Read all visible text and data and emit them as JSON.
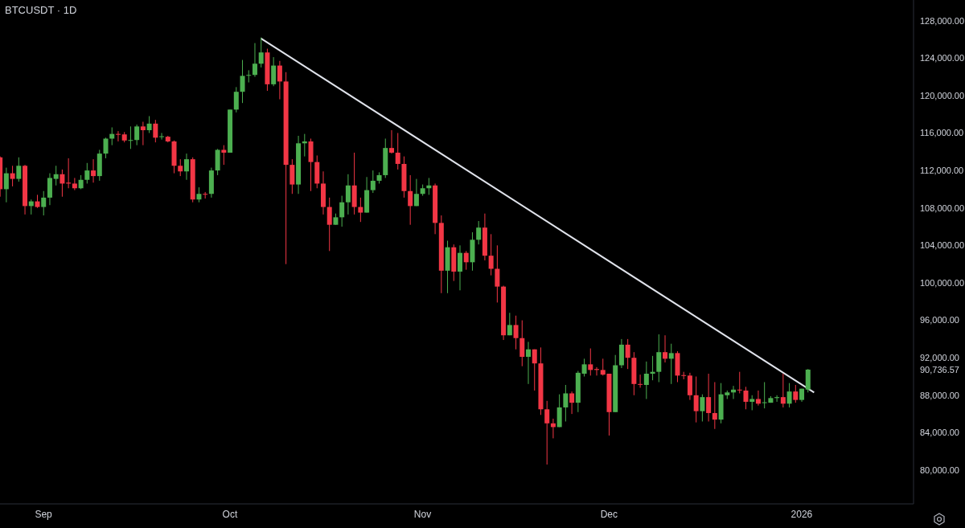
{
  "chart_data": {
    "type": "candlestick",
    "title": "BTCUSDT · 1D",
    "x": [
      "2025-08-25",
      "2025-08-26",
      "2025-08-27",
      "2025-08-28",
      "2025-08-29",
      "2025-08-30",
      "2025-08-31",
      "2025-09-01",
      "2025-09-02",
      "2025-09-03",
      "2025-09-04",
      "2025-09-05",
      "2025-09-06",
      "2025-09-07",
      "2025-09-08",
      "2025-09-09",
      "2025-09-10",
      "2025-09-11",
      "2025-09-12",
      "2025-09-13",
      "2025-09-14",
      "2025-09-15",
      "2025-09-16",
      "2025-09-17",
      "2025-09-18",
      "2025-09-19",
      "2025-09-20",
      "2025-09-21",
      "2025-09-22",
      "2025-09-23",
      "2025-09-24",
      "2025-09-25",
      "2025-09-26",
      "2025-09-27",
      "2025-09-28",
      "2025-09-29",
      "2025-09-30",
      "2025-10-01",
      "2025-10-02",
      "2025-10-03",
      "2025-10-04",
      "2025-10-05",
      "2025-10-06",
      "2025-10-07",
      "2025-10-08",
      "2025-10-09",
      "2025-10-10",
      "2025-10-11",
      "2025-10-12",
      "2025-10-13",
      "2025-10-14",
      "2025-10-15",
      "2025-10-16",
      "2025-10-17",
      "2025-10-18",
      "2025-10-19",
      "2025-10-20",
      "2025-10-21",
      "2025-10-22",
      "2025-10-23",
      "2025-10-24",
      "2025-10-25",
      "2025-10-26",
      "2025-10-27",
      "2025-10-28",
      "2025-10-29",
      "2025-10-30",
      "2025-10-31",
      "2025-11-01",
      "2025-11-02",
      "2025-11-03",
      "2025-11-04",
      "2025-11-05",
      "2025-11-06",
      "2025-11-07",
      "2025-11-08",
      "2025-11-09",
      "2025-11-10",
      "2025-11-11",
      "2025-11-12",
      "2025-11-13",
      "2025-11-14",
      "2025-11-15",
      "2025-11-16",
      "2025-11-17",
      "2025-11-18",
      "2025-11-19",
      "2025-11-20",
      "2025-11-21",
      "2025-11-22",
      "2025-11-23",
      "2025-11-24",
      "2025-11-25",
      "2025-11-26",
      "2025-11-27",
      "2025-11-28",
      "2025-11-29",
      "2025-11-30",
      "2025-12-01",
      "2025-12-02",
      "2025-12-03",
      "2025-12-04",
      "2025-12-05",
      "2025-12-06",
      "2025-12-07",
      "2025-12-08",
      "2025-12-09",
      "2025-12-10",
      "2025-12-11",
      "2025-12-12",
      "2025-12-13",
      "2025-12-14",
      "2025-12-15",
      "2025-12-16",
      "2025-12-17",
      "2025-12-18",
      "2025-12-19",
      "2025-12-20",
      "2025-12-21",
      "2025-12-22",
      "2025-12-23",
      "2025-12-24",
      "2025-12-25",
      "2025-12-26",
      "2025-12-27",
      "2025-12-28",
      "2025-12-29",
      "2025-12-30",
      "2025-12-31",
      "2026-01-01",
      "2026-01-02"
    ],
    "ohlc": [
      [
        113400,
        113500,
        109200,
        110000
      ],
      [
        110000,
        112300,
        108600,
        111700
      ],
      [
        111700,
        112500,
        110300,
        111100
      ],
      [
        111100,
        113400,
        110800,
        112500
      ],
      [
        112500,
        112600,
        107300,
        108200
      ],
      [
        108200,
        108900,
        107300,
        108700
      ],
      [
        108700,
        109400,
        108000,
        108100
      ],
      [
        108100,
        109800,
        107200,
        109100
      ],
      [
        109100,
        111700,
        108300,
        111200
      ],
      [
        111100,
        112500,
        110400,
        111600
      ],
      [
        111600,
        112100,
        109200,
        110600
      ],
      [
        110700,
        113300,
        110100,
        110600
      ],
      [
        110600,
        111200,
        109900,
        110100
      ],
      [
        110100,
        111500,
        110000,
        111000
      ],
      [
        111000,
        112800,
        110600,
        112000
      ],
      [
        112000,
        113200,
        110700,
        111400
      ],
      [
        111400,
        114200,
        110900,
        113800
      ],
      [
        113800,
        115500,
        113300,
        115400
      ],
      [
        115400,
        116600,
        114700,
        115900
      ],
      [
        115900,
        116200,
        115100,
        115850
      ],
      [
        115850,
        116100,
        115000,
        115200
      ],
      [
        115200,
        116700,
        114300,
        115250
      ],
      [
        115250,
        116900,
        114700,
        116700
      ],
      [
        116700,
        117200,
        114700,
        116300
      ],
      [
        116300,
        117800,
        116000,
        117000
      ],
      [
        117000,
        117400,
        115000,
        115500
      ],
      [
        115600,
        116000,
        115300,
        115650
      ],
      [
        115600,
        115700,
        115000,
        115100
      ],
      [
        115100,
        115200,
        111700,
        112500
      ],
      [
        112500,
        113200,
        111400,
        111900
      ],
      [
        111900,
        113800,
        111000,
        113200
      ],
      [
        113200,
        113400,
        108600,
        108900
      ],
      [
        108900,
        110200,
        108600,
        109500
      ],
      [
        109500,
        109700,
        109000,
        109450
      ],
      [
        109500,
        112300,
        109100,
        112000
      ],
      [
        112000,
        114300,
        111500,
        114200
      ],
      [
        114200,
        114700,
        112600,
        113900
      ],
      [
        113900,
        118500,
        113900,
        118500
      ],
      [
        118500,
        120900,
        118200,
        120400
      ],
      [
        120400,
        123800,
        119200,
        122100
      ],
      [
        122150,
        122700,
        121400,
        122200
      ],
      [
        122200,
        125600,
        122000,
        123400
      ],
      [
        123400,
        126200,
        123000,
        124600
      ],
      [
        124600,
        125000,
        120500,
        121200
      ],
      [
        121200,
        124100,
        121000,
        123200
      ],
      [
        123200,
        123700,
        119600,
        121500
      ],
      [
        121500,
        122500,
        102000,
        112600
      ],
      [
        112600,
        113200,
        109500,
        110500
      ],
      [
        110500,
        115700,
        109500,
        114900
      ],
      [
        114900,
        115900,
        113500,
        115100
      ],
      [
        115100,
        115400,
        109800,
        112900
      ],
      [
        112900,
        113600,
        110100,
        110600
      ],
      [
        110600,
        111900,
        107300,
        108100
      ],
      [
        108100,
        109100,
        103400,
        106200
      ],
      [
        106200,
        107400,
        106200,
        107000
      ],
      [
        107000,
        109300,
        106000,
        108600
      ],
      [
        108600,
        111600,
        107300,
        110400
      ],
      [
        110400,
        113900,
        107300,
        108100
      ],
      [
        108100,
        109100,
        106500,
        107500
      ],
      [
        107500,
        111300,
        107500,
        109900
      ],
      [
        109900,
        112000,
        109600,
        110900
      ],
      [
        110900,
        111800,
        110600,
        111500
      ],
      [
        111500,
        115400,
        111200,
        114400
      ],
      [
        114400,
        116300,
        113800,
        113900
      ],
      [
        113900,
        116000,
        112100,
        112700
      ],
      [
        112700,
        113500,
        109100,
        109800
      ],
      [
        109800,
        111500,
        106200,
        108200
      ],
      [
        108200,
        111100,
        108200,
        109500
      ],
      [
        109500,
        110500,
        109300,
        110100
      ],
      [
        110100,
        111200,
        109400,
        110400
      ],
      [
        110400,
        110600,
        105200,
        106400
      ],
      [
        106400,
        107200,
        98900,
        101300
      ],
      [
        101300,
        104500,
        98900,
        103800
      ],
      [
        103800,
        104100,
        100200,
        101200
      ],
      [
        101200,
        104000,
        99200,
        103200
      ],
      [
        103200,
        103400,
        101400,
        102200
      ],
      [
        102200,
        105400,
        101300,
        104600
      ],
      [
        104600,
        106600,
        104100,
        105900
      ],
      [
        105900,
        107400,
        102400,
        102900
      ],
      [
        102900,
        105200,
        100800,
        101500
      ],
      [
        101500,
        104000,
        97900,
        99600
      ],
      [
        99600,
        99700,
        93900,
        94400
      ],
      [
        94400,
        96800,
        94400,
        95500
      ],
      [
        95500,
        96500,
        92900,
        94100
      ],
      [
        94100,
        96000,
        91100,
        92100
      ],
      [
        92100,
        93700,
        89200,
        92900
      ],
      [
        92900,
        92900,
        88500,
        91400
      ],
      [
        91400,
        93100,
        85900,
        86500
      ],
      [
        86500,
        87400,
        80600,
        85000
      ],
      [
        85000,
        85500,
        83400,
        84600
      ],
      [
        84600,
        88100,
        84600,
        86700
      ],
      [
        86700,
        89100,
        85200,
        88200
      ],
      [
        88200,
        88400,
        86000,
        87200
      ],
      [
        87200,
        90600,
        86200,
        90400
      ],
      [
        90300,
        91900,
        90000,
        91300
      ],
      [
        91300,
        93000,
        90100,
        90700
      ],
      [
        90800,
        91000,
        90100,
        90700
      ],
      [
        90700,
        91900,
        90100,
        90200
      ],
      [
        90300,
        90300,
        83700,
        86200
      ],
      [
        86200,
        92300,
        86200,
        91200
      ],
      [
        91200,
        94000,
        90900,
        93400
      ],
      [
        93400,
        94000,
        90800,
        92000
      ],
      [
        92000,
        92600,
        88000,
        89200
      ],
      [
        89200,
        90200,
        88800,
        89150
      ],
      [
        89100,
        91600,
        87600,
        90300
      ],
      [
        90300,
        92200,
        89600,
        90500
      ],
      [
        90500,
        94500,
        89400,
        92600
      ],
      [
        92600,
        94400,
        91500,
        91900
      ],
      [
        91900,
        93500,
        89200,
        92500
      ],
      [
        92500,
        92700,
        89400,
        90100
      ],
      [
        90150,
        90500,
        89700,
        90100
      ],
      [
        90100,
        90400,
        87500,
        88000
      ],
      [
        88000,
        90000,
        85100,
        86300
      ],
      [
        86300,
        88100,
        85200,
        87800
      ],
      [
        87800,
        90300,
        85200,
        86100
      ],
      [
        86100,
        89400,
        84400,
        85400
      ],
      [
        85400,
        89300,
        85000,
        88100
      ],
      [
        88000,
        88500,
        87600,
        88300
      ],
      [
        88300,
        89000,
        87600,
        88600
      ],
      [
        88600,
        90500,
        88200,
        88550
      ],
      [
        88500,
        88900,
        86500,
        87300
      ],
      [
        87300,
        88000,
        86400,
        87600
      ],
      [
        87600,
        88500,
        86900,
        87100
      ],
      [
        87200,
        89400,
        86600,
        87250
      ],
      [
        87200,
        87900,
        87200,
        87700
      ],
      [
        87700,
        88000,
        87300,
        87800
      ],
      [
        87800,
        90300,
        86700,
        87100
      ],
      [
        87100,
        89300,
        86700,
        88400
      ],
      [
        88400,
        89100,
        87200,
        87500
      ],
      [
        87500,
        88700,
        87300,
        88700
      ],
      [
        88600,
        90800,
        88300,
        90736.57
      ]
    ],
    "colors": [
      "#f23645",
      "#4caf50",
      "#f23645",
      "#4caf50",
      "#f23645",
      "#4caf50",
      "#f23645",
      "#4caf50",
      "#4caf50",
      "#4caf50",
      "#f23645",
      "#f23645",
      "#f23645",
      "#4caf50",
      "#4caf50",
      "#f23645",
      "#4caf50",
      "#4caf50",
      "#4caf50",
      "#f23645",
      "#f23645",
      "#4caf50",
      "#4caf50",
      "#f23645",
      "#4caf50",
      "#f23645",
      "#4caf50",
      "#f23645",
      "#f23645",
      "#f23645",
      "#4caf50",
      "#f23645",
      "#4caf50",
      "#f23645",
      "#4caf50",
      "#4caf50",
      "#f23645",
      "#4caf50",
      "#4caf50",
      "#4caf50",
      "#4caf50",
      "#4caf50",
      "#4caf50",
      "#f23645",
      "#4caf50",
      "#f23645",
      "#f23645",
      "#f23645",
      "#4caf50",
      "#4caf50",
      "#f23645",
      "#f23645",
      "#f23645",
      "#f23645",
      "#4caf50",
      "#4caf50",
      "#4caf50",
      "#f23645",
      "#f23645",
      "#4caf50",
      "#4caf50",
      "#4caf50",
      "#4caf50",
      "#f23645",
      "#f23645",
      "#f23645",
      "#f23645",
      "#4caf50",
      "#4caf50",
      "#4caf50",
      "#f23645",
      "#f23645",
      "#4caf50",
      "#f23645",
      "#4caf50",
      "#f23645",
      "#4caf50",
      "#4caf50",
      "#f23645",
      "#f23645",
      "#f23645",
      "#f23645",
      "#4caf50",
      "#f23645",
      "#f23645",
      "#4caf50",
      "#f23645",
      "#f23645",
      "#f23645",
      "#f23645",
      "#4caf50",
      "#4caf50",
      "#f23645",
      "#4caf50",
      "#4caf50",
      "#f23645",
      "#f23645",
      "#f23645",
      "#f23645",
      "#4caf50",
      "#4caf50",
      "#f23645",
      "#f23645",
      "#f23645",
      "#4caf50",
      "#4caf50",
      "#4caf50",
      "#f23645",
      "#4caf50",
      "#f23645",
      "#f23645",
      "#f23645",
      "#f23645",
      "#4caf50",
      "#f23645",
      "#f23645",
      "#4caf50",
      "#4caf50",
      "#4caf50",
      "#f23645",
      "#f23645",
      "#4caf50",
      "#f23645",
      "#4caf50",
      "#4caf50",
      "#4caf50",
      "#f23645",
      "#4caf50",
      "#f23645",
      "#4caf50",
      "#4caf50"
    ],
    "series": [
      {
        "type": "line",
        "color": "#e0e3eb",
        "x": [
          "2025-10-06",
          "2026-01-03"
        ],
        "values": [
          126100,
          88300
        ]
      }
    ],
    "xlim": [
      "2025-08-25",
      "2026-01-19"
    ],
    "xticks": [
      {
        "value": "2025-09-01",
        "label": "Sep"
      },
      {
        "value": "2025-10-01",
        "label": "Oct"
      },
      {
        "value": "2025-11-01",
        "label": "Nov"
      },
      {
        "value": "2025-12-01",
        "label": "Dec"
      },
      {
        "value": "2026-01-01",
        "label": "2026"
      }
    ],
    "ylim": [
      76400,
      130200
    ],
    "yticks": [
      {
        "value": 80000,
        "label": "80,000.00"
      },
      {
        "value": 84000,
        "label": "84,000.00"
      },
      {
        "value": 88000,
        "label": "88,000.00"
      },
      {
        "value": 90736.57,
        "label": "90,736.57"
      },
      {
        "value": 92000,
        "label": "92,000.00"
      },
      {
        "value": 96000,
        "label": "96,000.00"
      },
      {
        "value": 100000,
        "label": "100,000.00"
      },
      {
        "value": 104000,
        "label": "104,000.00"
      },
      {
        "value": 108000,
        "label": "108,000.00"
      },
      {
        "value": 112000,
        "label": "112,000.00"
      },
      {
        "value": 116000,
        "label": "116,000.00"
      },
      {
        "value": 120000,
        "label": "120,000.00"
      },
      {
        "value": 124000,
        "label": "124,000.00"
      },
      {
        "value": 128000,
        "label": "128,000.00"
      }
    ]
  }
}
